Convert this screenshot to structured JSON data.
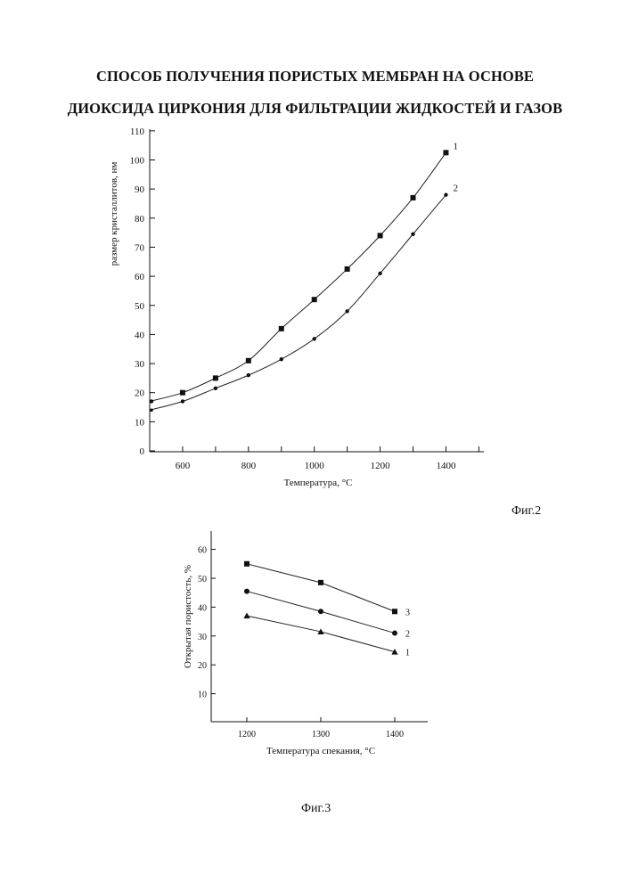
{
  "document": {
    "title_line1": "СПОСОБ ПОЛУЧЕНИЯ ПОРИСТЫХ МЕМБРАН НА ОСНОВЕ",
    "title_line2": "ДИОКСИДА ЦИРКОНИЯ ДЛЯ  ФИЛЬТРАЦИИ  ЖИДКОСТЕЙ И  ГАЗОВ",
    "fig2_caption": "Фиг.2",
    "fig3_caption": "Фиг.3"
  },
  "chart_data": [
    {
      "type": "line",
      "xlabel": "Температура, °С",
      "ylabel": "размер кристаллитов, нм",
      "xlim": [
        500,
        1500
      ],
      "ylim": [
        0,
        110
      ],
      "xticks": [
        "600",
        "800",
        "1000",
        "1200",
        "1400"
      ],
      "yticks": [
        "0",
        "10",
        "20",
        "30",
        "40",
        "50",
        "60",
        "70",
        "80",
        "90",
        "100",
        "110"
      ],
      "series": [
        {
          "name": "1",
          "marker": "square",
          "points": [
            [
              500,
              17
            ],
            [
              600,
              20
            ],
            [
              700,
              25
            ],
            [
              800,
              31
            ],
            [
              900,
              42
            ],
            [
              1000,
              52
            ],
            [
              1100,
              62.5
            ],
            [
              1200,
              74
            ],
            [
              1300,
              87
            ],
            [
              1400,
              102.5
            ]
          ]
        },
        {
          "name": "2",
          "marker": "circle",
          "points": [
            [
              500,
              14
            ],
            [
              600,
              17
            ],
            [
              700,
              21.5
            ],
            [
              800,
              26
            ],
            [
              900,
              31.5
            ],
            [
              1000,
              38.5
            ],
            [
              1100,
              48
            ],
            [
              1200,
              61
            ],
            [
              1300,
              74.5
            ],
            [
              1400,
              88
            ]
          ]
        }
      ]
    },
    {
      "type": "line",
      "xlabel": "Температура спекания, °С",
      "ylabel": "Открытая пористость, %",
      "xlim": [
        1150,
        1450
      ],
      "ylim": [
        0,
        65
      ],
      "xticks": [
        "1200",
        "1300",
        "1400"
      ],
      "yticks": [
        "10",
        "20",
        "30",
        "40",
        "50",
        "60"
      ],
      "series": [
        {
          "name": "3",
          "marker": "square",
          "points": [
            [
              1200,
              55
            ],
            [
              1300,
              48.5
            ],
            [
              1400,
              38.5
            ]
          ]
        },
        {
          "name": "2",
          "marker": "circle",
          "points": [
            [
              1200,
              45.5
            ],
            [
              1300,
              38.5
            ],
            [
              1400,
              31
            ]
          ]
        },
        {
          "name": "1",
          "marker": "triangle",
          "points": [
            [
              1200,
              37
            ],
            [
              1300,
              31.5
            ],
            [
              1400,
              24.5
            ]
          ]
        }
      ]
    }
  ]
}
